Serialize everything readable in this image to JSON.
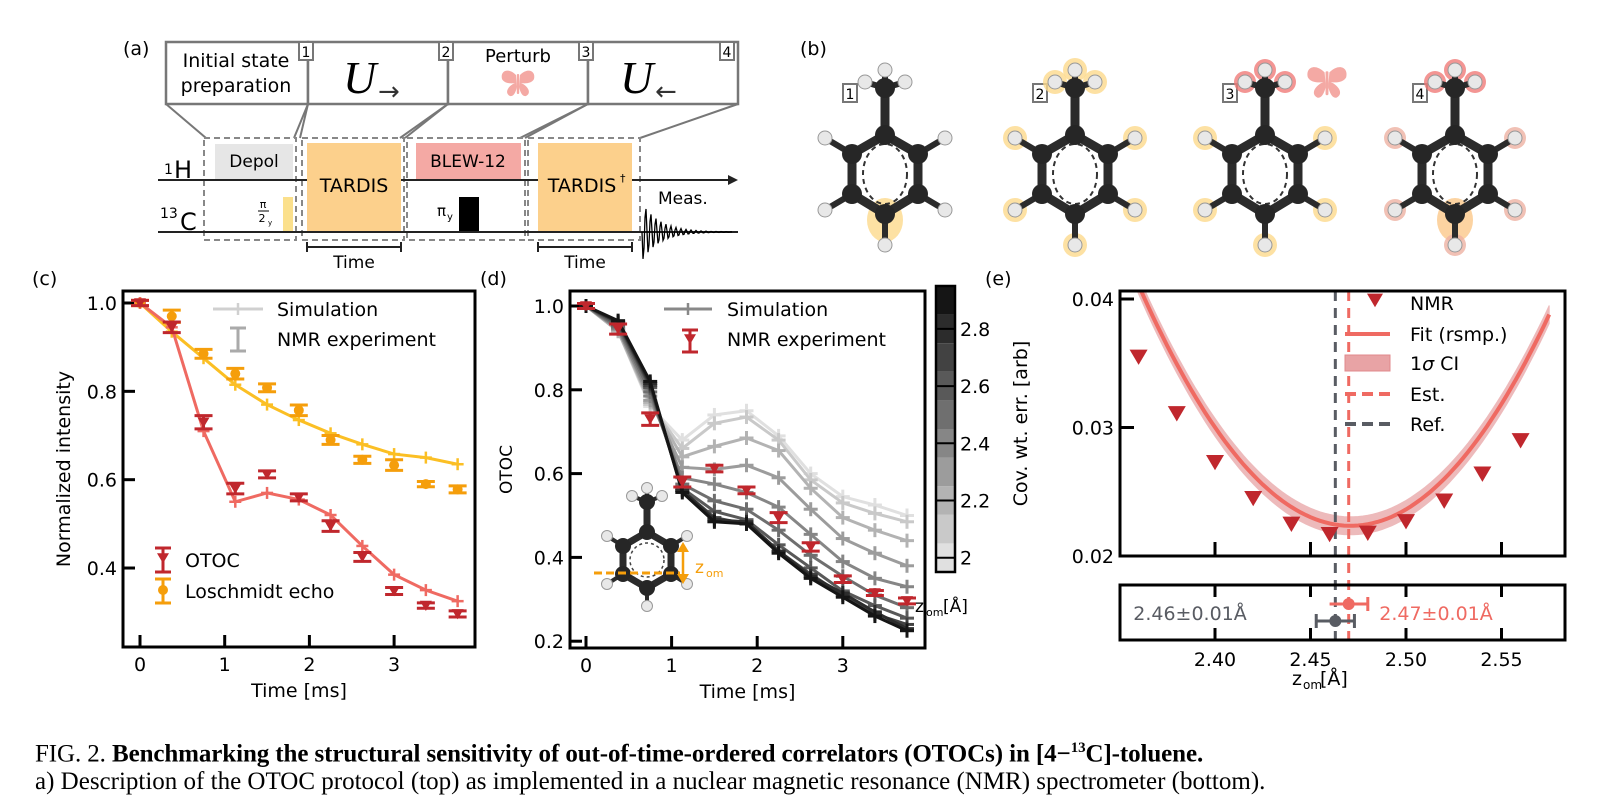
{
  "panels": {
    "a": {
      "label": "(a)",
      "stages": [
        {
          "title": "Initial state preparation",
          "line1": "Initial state",
          "line2": "preparation",
          "marker": "1"
        },
        {
          "title": "U→",
          "symbol": "U",
          "arrow": "→",
          "marker": "2"
        },
        {
          "title": "Perturb",
          "icon": "butterfly-icon",
          "marker": "3"
        },
        {
          "title": "U←",
          "symbol": "U",
          "arrow": "←",
          "marker": "4"
        }
      ],
      "channels": {
        "h": "1H",
        "h_sup": "1",
        "h_base": "H",
        "c_sup": "13",
        "c_base": "C"
      },
      "blocks": {
        "depol": "Depol",
        "pi2": "π",
        "pi2_den": "2",
        "pi2_sub": "y",
        "tardis": "TARDIS",
        "blew": "BLEW-12",
        "piy": "π",
        "piy_sub": "y",
        "tardis_dag": "TARDIS",
        "dag": "†",
        "meas": "Meas."
      },
      "time_label_1": "Time",
      "time_label_2": "Time",
      "colors": {
        "tardis": "#fcd08c",
        "blew": "#f4a9a4",
        "depol": "#e6e6e6",
        "pi2": "#fbe08c",
        "butterfly": "#f4a9a4"
      }
    },
    "b": {
      "label": "(b)",
      "molecules": [
        {
          "marker": "1",
          "highlight": "para-carbon"
        },
        {
          "marker": "2",
          "highlight": "all protons"
        },
        {
          "marker": "3",
          "highlight": "perturbed methyl protons",
          "butterfly": true
        },
        {
          "marker": "4",
          "highlight": "mixed"
        }
      ]
    },
    "c": {
      "label": "(c)"
    },
    "d": {
      "label": "(d)",
      "inset_label": "z",
      "inset_sub": "om",
      "colorbar_label": "z",
      "colorbar_sub": "om",
      "colorbar_unit": "[Å]"
    },
    "e": {
      "label": "(e)",
      "ref_text": "2.46±0.01Å",
      "est_text": "2.47±0.01Å"
    }
  },
  "caption": {
    "fig": "FIG. 2.",
    "title": "Benchmarking the structural sensitivity of out-of-time-ordered correlators (OTOCs) in [4−",
    "sup": "13",
    "title_end": "C]-toluene.",
    "line2": "a) Description of the OTOC protocol (top) as implemented in a nuclear magnetic resonance (NMR) spectrometer (bottom)."
  },
  "chart_data": [
    {
      "id": "c",
      "type": "line",
      "title": "",
      "xlabel": "Time [ms]",
      "ylabel": "Normalized intensity",
      "xlim": [
        -0.15,
        3.95
      ],
      "ylim": [
        0.255,
        1.03
      ],
      "xticks": [
        0,
        1,
        2,
        3
      ],
      "yticks": [
        0.4,
        0.6,
        0.8,
        1.0
      ],
      "ytick_labels": [
        "0.4",
        "0.6",
        "0.8",
        "1.0"
      ],
      "x": [
        0,
        0.375,
        0.75,
        1.125,
        1.5,
        1.875,
        2.25,
        2.625,
        3.0,
        3.375,
        3.75
      ],
      "series": [
        {
          "name": "OTOC",
          "kind": "experiment",
          "color": "#c0272d",
          "marker": "triangle-down",
          "values": [
            1.0,
            0.945,
            0.73,
            0.58,
            0.612,
            0.56,
            0.495,
            0.425,
            0.348,
            0.315,
            0.296
          ],
          "err": [
            0.006,
            0.012,
            0.015,
            0.012,
            0.008,
            0.008,
            0.012,
            0.01,
            0.008,
            0.006,
            0.007
          ]
        },
        {
          "name": "OTOC simulation",
          "kind": "simulation",
          "color": "#ef6a62",
          "values": [
            1.0,
            0.945,
            0.71,
            0.55,
            0.57,
            0.555,
            0.52,
            0.45,
            0.385,
            0.35,
            0.325
          ]
        },
        {
          "name": "Loschmidt echo",
          "kind": "experiment",
          "color": "#f59e0b",
          "marker": "circle",
          "values": [
            1.0,
            0.97,
            0.885,
            0.84,
            0.808,
            0.757,
            0.69,
            0.645,
            0.633,
            0.59,
            0.578
          ],
          "err": [
            0.006,
            0.014,
            0.01,
            0.012,
            0.009,
            0.012,
            0.01,
            0.008,
            0.012,
            0.006,
            0.008
          ]
        },
        {
          "name": "Loschmidt echo simulation",
          "kind": "simulation",
          "color": "#fbbf24",
          "values": [
            1.0,
            0.935,
            0.875,
            0.815,
            0.77,
            0.735,
            0.705,
            0.68,
            0.658,
            0.65,
            0.635
          ]
        }
      ],
      "legend": [
        {
          "label": "Simulation",
          "style": "sim",
          "color": "#cccccc"
        },
        {
          "label": "NMR experiment",
          "style": "err",
          "color": "#aaaaaa"
        },
        {
          "label": "OTOC",
          "style": "err-tri",
          "color": "#c0272d"
        },
        {
          "label": "Loschmidt echo",
          "style": "err-dot",
          "color": "#f59e0b"
        }
      ],
      "legend_position": "top-right / bottom-left"
    },
    {
      "id": "d",
      "type": "line",
      "xlabel": "Time [ms]",
      "ylabel": "OTOC",
      "xlim": [
        -0.2,
        3.95
      ],
      "ylim": [
        0.19,
        1.05
      ],
      "xticks": [
        0,
        1,
        2,
        3
      ],
      "yticks": [
        0.2,
        0.4,
        0.6,
        0.8,
        1.0
      ],
      "ytick_labels": [
        "0.2",
        "0.4",
        "0.6",
        "0.8",
        "1.0"
      ],
      "x": [
        0,
        0.375,
        0.75,
        1.125,
        1.5,
        1.875,
        2.25,
        2.625,
        3.0,
        3.375,
        3.75
      ],
      "colorbar": {
        "label": "z_om [Å]",
        "ticks": [
          2,
          2.2,
          2.4,
          2.6,
          2.8
        ],
        "range": [
          1.95,
          2.95
        ]
      },
      "series": [
        {
          "name": "z=2.0",
          "z": 2.0,
          "values": [
            1.0,
            0.94,
            0.76,
            0.68,
            0.74,
            0.75,
            0.69,
            0.6,
            0.545,
            0.525,
            0.5
          ]
        },
        {
          "name": "z=2.1",
          "z": 2.1,
          "values": [
            1.0,
            0.94,
            0.765,
            0.66,
            0.72,
            0.735,
            0.68,
            0.585,
            0.53,
            0.505,
            0.485
          ]
        },
        {
          "name": "z=2.2",
          "z": 2.2,
          "values": [
            1.0,
            0.94,
            0.77,
            0.64,
            0.665,
            0.685,
            0.655,
            0.565,
            0.495,
            0.465,
            0.44
          ]
        },
        {
          "name": "z=2.3",
          "z": 2.3,
          "values": [
            1.0,
            0.945,
            0.775,
            0.615,
            0.61,
            0.62,
            0.59,
            0.515,
            0.445,
            0.41,
            0.38
          ]
        },
        {
          "name": "z=2.4",
          "z": 2.4,
          "values": [
            1.0,
            0.945,
            0.785,
            0.59,
            0.575,
            0.555,
            0.52,
            0.455,
            0.39,
            0.35,
            0.33
          ]
        },
        {
          "name": "z=2.5",
          "z": 2.5,
          "values": [
            1.0,
            0.95,
            0.795,
            0.575,
            0.535,
            0.515,
            0.465,
            0.405,
            0.355,
            0.31,
            0.28
          ]
        },
        {
          "name": "z=2.6",
          "z": 2.6,
          "values": [
            1.0,
            0.955,
            0.805,
            0.565,
            0.51,
            0.49,
            0.43,
            0.375,
            0.32,
            0.285,
            0.255
          ]
        },
        {
          "name": "z=2.7",
          "z": 2.7,
          "values": [
            1.0,
            0.96,
            0.81,
            0.56,
            0.495,
            0.48,
            0.415,
            0.36,
            0.31,
            0.265,
            0.24
          ]
        },
        {
          "name": "z=2.8",
          "z": 2.8,
          "values": [
            1.0,
            0.962,
            0.815,
            0.56,
            0.49,
            0.485,
            0.415,
            0.355,
            0.315,
            0.27,
            0.23
          ]
        },
        {
          "name": "z=2.9",
          "z": 2.9,
          "values": [
            1.0,
            0.965,
            0.82,
            0.555,
            0.485,
            0.48,
            0.41,
            0.35,
            0.305,
            0.26,
            0.225
          ]
        },
        {
          "name": "NMR experiment",
          "kind": "experiment",
          "color": "#c0272d",
          "marker": "triangle-down",
          "values": [
            1.0,
            0.945,
            0.73,
            0.58,
            0.612,
            0.56,
            0.495,
            0.425,
            0.348,
            0.315,
            0.296
          ],
          "err": [
            0.006,
            0.012,
            0.015,
            0.012,
            0.008,
            0.008,
            0.012,
            0.01,
            0.008,
            0.006,
            0.007
          ]
        }
      ],
      "legend": [
        {
          "label": "Simulation",
          "style": "sim",
          "color": "#888888"
        },
        {
          "label": "NMR experiment",
          "style": "err-tri",
          "color": "#c0272d"
        }
      ],
      "legend_position": "top-right"
    },
    {
      "id": "e",
      "type": "scatter",
      "xlabel": "z_om [Å]",
      "ylabel": "Cov. wt. err. [arb]",
      "xlim": [
        2.35,
        2.575
      ],
      "ylim": [
        0.02,
        0.0405
      ],
      "xticks": [
        2.4,
        2.45,
        2.5,
        2.55
      ],
      "xtick_labels": [
        "2.40",
        "2.45",
        "2.50",
        "2.55"
      ],
      "yticks": [
        0.02,
        0.03,
        0.04
      ],
      "ytick_labels": [
        "0.02",
        "0.03",
        "0.04"
      ],
      "nmr_points": {
        "x": [
          2.36,
          2.38,
          2.4,
          2.42,
          2.44,
          2.46,
          2.48,
          2.5,
          2.52,
          2.54,
          2.56
        ],
        "y": [
          0.0355,
          0.0311,
          0.0273,
          0.0245,
          0.0225,
          0.0217,
          0.0218,
          0.0227,
          0.0243,
          0.0264,
          0.029
        ]
      },
      "fit": {
        "center": 2.471,
        "min": 0.02235,
        "curvature": 1.52,
        "ci_halfwidth": 0.0007
      },
      "est": 2.47,
      "est_err": 0.01,
      "ref": 2.463,
      "ref_err": 0.01,
      "legend": [
        {
          "label": "NMR",
          "style": "tri",
          "color": "#c0272d"
        },
        {
          "label": "Fit (rsmp.)",
          "style": "line",
          "color": "#ef6a62"
        },
        {
          "label": "1σ CI",
          "label_pre": "1",
          "label_sigma": "σ",
          "label_post": " CI",
          "style": "band",
          "color": "#e8a3a5"
        },
        {
          "label": "Est.",
          "style": "dash",
          "color": "#ef6a62"
        },
        {
          "label": "Ref.",
          "style": "dash",
          "color": "#595c63"
        }
      ],
      "legend_position": "top-right"
    }
  ]
}
